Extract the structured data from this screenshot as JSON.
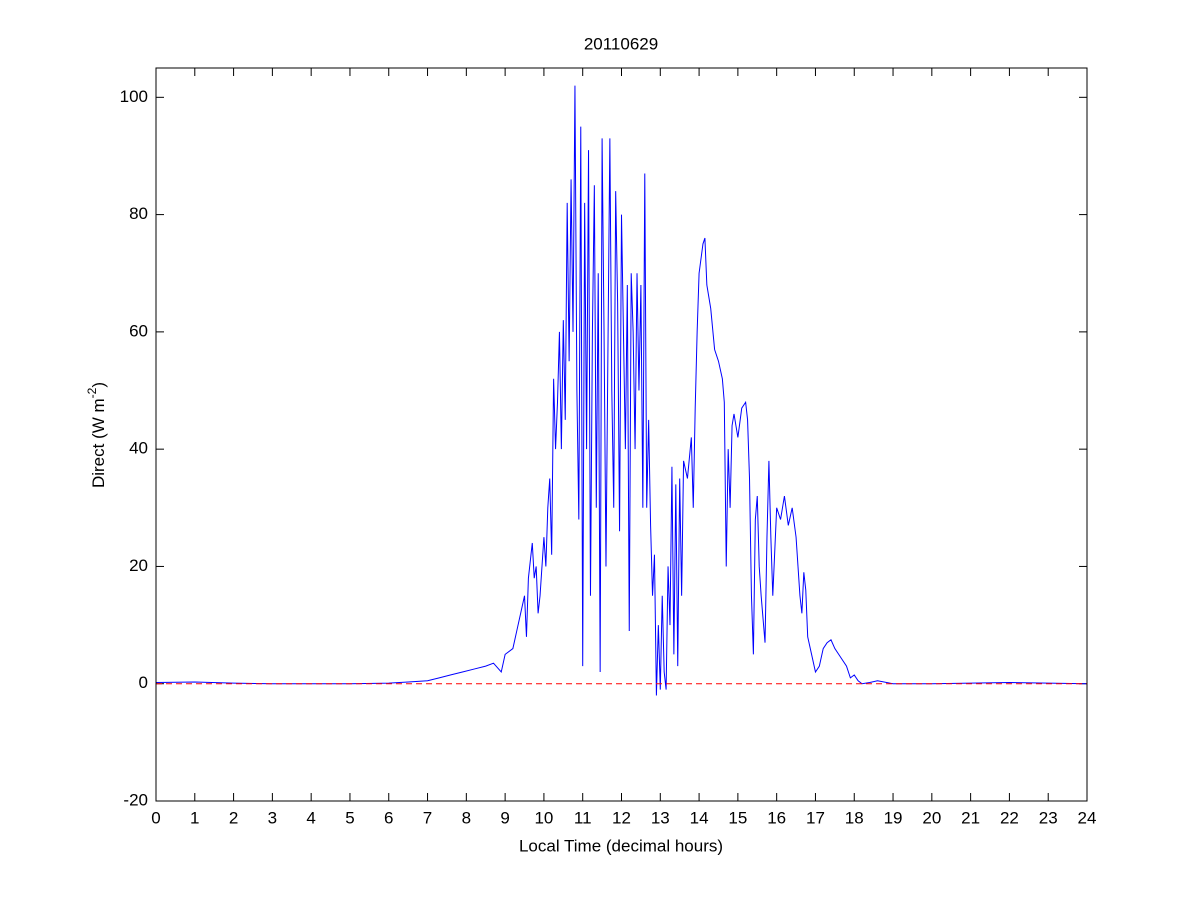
{
  "chart_data": {
    "type": "line",
    "title": "20110629",
    "xlabel": "Local Time (decimal hours)",
    "ylabel": [
      "Direct (W m",
      "-2",
      ")"
    ],
    "xlim": [
      0,
      24
    ],
    "ylim": [
      -20,
      105
    ],
    "xticks": [
      0,
      1,
      2,
      3,
      4,
      5,
      6,
      7,
      8,
      9,
      10,
      11,
      12,
      13,
      14,
      15,
      16,
      17,
      18,
      19,
      20,
      21,
      22,
      23,
      24
    ],
    "yticks": [
      -20,
      0,
      20,
      40,
      60,
      80,
      100
    ],
    "reference_line": {
      "value": 0,
      "color": "#ff0000"
    },
    "x": [
      0,
      1,
      2,
      3,
      4,
      5,
      6,
      6.5,
      7,
      7.3,
      7.6,
      7.9,
      8.2,
      8.5,
      8.7,
      8.9,
      9.0,
      9.2,
      9.3,
      9.4,
      9.5,
      9.55,
      9.6,
      9.7,
      9.75,
      9.8,
      9.85,
      9.9,
      10.0,
      10.05,
      10.1,
      10.15,
      10.2,
      10.25,
      10.3,
      10.35,
      10.4,
      10.45,
      10.5,
      10.55,
      10.6,
      10.65,
      10.7,
      10.75,
      10.8,
      10.85,
      10.9,
      10.95,
      11.0,
      11.05,
      11.1,
      11.15,
      11.2,
      11.25,
      11.3,
      11.35,
      11.4,
      11.45,
      11.5,
      11.55,
      11.6,
      11.7,
      11.75,
      11.8,
      11.85,
      11.9,
      11.95,
      12.0,
      12.1,
      12.15,
      12.2,
      12.25,
      12.3,
      12.35,
      12.4,
      12.45,
      12.5,
      12.55,
      12.6,
      12.65,
      12.7,
      12.75,
      12.8,
      12.85,
      12.9,
      12.95,
      13.0,
      13.05,
      13.1,
      13.15,
      13.2,
      13.25,
      13.3,
      13.35,
      13.4,
      13.45,
      13.5,
      13.55,
      13.6,
      13.7,
      13.8,
      13.85,
      13.9,
      13.95,
      14.0,
      14.1,
      14.15,
      14.2,
      14.3,
      14.4,
      14.5,
      14.6,
      14.65,
      14.7,
      14.75,
      14.8,
      14.85,
      14.9,
      15.0,
      15.1,
      15.2,
      15.25,
      15.3,
      15.35,
      15.4,
      15.45,
      15.5,
      15.55,
      15.6,
      15.7,
      15.75,
      15.8,
      15.85,
      15.9,
      16.0,
      16.1,
      16.2,
      16.3,
      16.4,
      16.5,
      16.6,
      16.65,
      16.7,
      16.75,
      16.8,
      16.9,
      17.0,
      17.1,
      17.2,
      17.3,
      17.4,
      17.5,
      17.6,
      17.7,
      17.8,
      17.9,
      18.0,
      18.1,
      18.2,
      18.4,
      18.6,
      19,
      20,
      21,
      22,
      23,
      24
    ],
    "series": [
      {
        "color": "#0000ff",
        "values": [
          0.2,
          0.3,
          0.1,
          0,
          0,
          0,
          0.1,
          0.3,
          0.5,
          1,
          1.5,
          2,
          2.5,
          3,
          3.5,
          2,
          5,
          6,
          9,
          12,
          15,
          8,
          18,
          24,
          18,
          20,
          12,
          15,
          25,
          20,
          30,
          35,
          22,
          52,
          40,
          48,
          60,
          40,
          62,
          45,
          82,
          55,
          86,
          60,
          102,
          50,
          28,
          95,
          3,
          82,
          40,
          91,
          15,
          60,
          85,
          30,
          70,
          2,
          93,
          60,
          20,
          93,
          50,
          30,
          84,
          65,
          26,
          80,
          40,
          68,
          9,
          70,
          60,
          40,
          70,
          50,
          68,
          30,
          87,
          30,
          45,
          27,
          15,
          22,
          -2,
          10,
          -1,
          15,
          2,
          -1,
          20,
          10,
          37,
          5,
          34,
          3,
          35,
          15,
          38,
          35,
          42,
          30,
          47,
          60,
          70,
          75,
          76,
          68,
          64,
          57,
          55,
          52,
          48,
          20,
          40,
          30,
          44,
          46,
          42,
          47,
          48,
          45,
          35,
          15,
          5,
          28,
          32,
          20,
          15,
          7,
          25,
          38,
          25,
          15,
          30,
          28,
          32,
          27,
          30,
          25,
          15,
          12,
          19,
          16,
          8,
          5,
          2,
          3,
          6,
          7,
          7.5,
          6,
          5,
          4,
          3,
          1,
          1.5,
          0.5,
          0,
          0.2,
          0.5,
          0,
          0,
          0.1,
          0.2,
          0.1,
          0
        ]
      }
    ]
  }
}
